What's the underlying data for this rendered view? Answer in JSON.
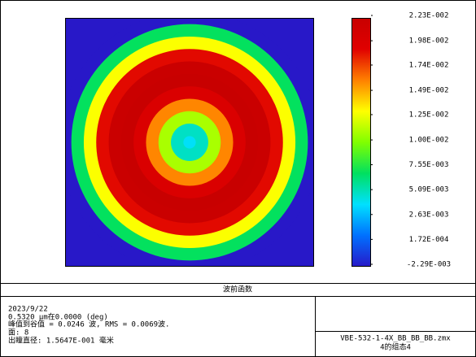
{
  "chart_data": {
    "type": "radial-heatmap",
    "x": [
      0,
      0.1,
      0.2,
      0.3,
      0.4,
      0.5,
      0.6,
      0.7,
      0.8,
      0.9,
      1.0
    ],
    "values": [
      0.004,
      0.005,
      0.011,
      0.016,
      0.02,
      0.0223,
      0.022,
      0.019,
      0.013,
      0.007,
      -0.00229
    ],
    "clim": [
      -0.00229,
      0.0223
    ],
    "cticks": [
      {
        "value": 0.0223,
        "label": "2.23E-002"
      },
      {
        "value": 0.0198,
        "label": "1.98E-002"
      },
      {
        "value": 0.0174,
        "label": "1.74E-002"
      },
      {
        "value": 0.0149,
        "label": "1.49E-002"
      },
      {
        "value": 0.0125,
        "label": "1.25E-002"
      },
      {
        "value": 0.01,
        "label": "1.00E-002"
      },
      {
        "value": 0.00755,
        "label": "7.55E-003"
      },
      {
        "value": 0.00509,
        "label": "5.09E-003"
      },
      {
        "value": 0.00263,
        "label": "2.63E-003"
      },
      {
        "value": 0.000172,
        "label": "1.72E-004"
      },
      {
        "value": -0.00229,
        "label": "-2.29E-003"
      }
    ],
    "colormap": [
      "#2818c8",
      "#0070ff",
      "#00e0ff",
      "#00e060",
      "#80ff00",
      "#ffff00",
      "#ff8000",
      "#e00000",
      "#c80000"
    ],
    "title": "波前函数",
    "info": [
      "2023/9/22",
      "0.5320 µm在0.0000 (deg)",
      "峰值到谷值 = 0.0246 波, RMS = 0.0069波.",
      "面: 8",
      "出瞳直径: 1.5647E-001 毫米"
    ],
    "file": "VBE-532-1-4X_BB_BB_BB.zmx",
    "config": "4的组态4"
  }
}
